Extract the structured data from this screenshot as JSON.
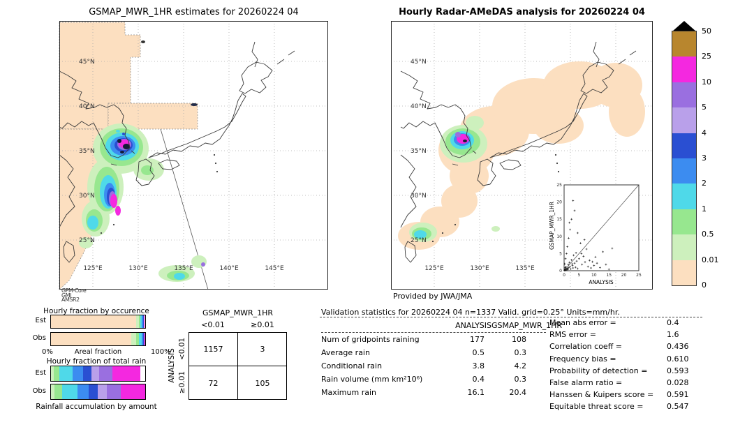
{
  "maps": {
    "left": {
      "title": "GSMAP_MWR_1HR estimates for 20260224 04",
      "lat_labels": [
        "45°N",
        "40°N",
        "35°N",
        "30°N",
        "25°N"
      ],
      "lon_labels": [
        "125°E",
        "130°E",
        "135°E",
        "140°E",
        "145°E"
      ],
      "annotations": [
        "GPM-Core",
        "GMI",
        "AMSR2"
      ],
      "blobs": [
        [
          88,
          183,
          40,
          36,
          "#cdf0bd"
        ],
        [
          66,
          238,
          26,
          40,
          "#cdf0bd"
        ],
        [
          52,
          283,
          20,
          26,
          "#cdf0bd"
        ],
        [
          128,
          213,
          22,
          16,
          "#cdf0bd"
        ],
        [
          168,
          362,
          26,
          12,
          "#cdf0bd"
        ],
        [
          200,
          345,
          11,
          9,
          "#cdf0bd"
        ],
        [
          38,
          318,
          10,
          8,
          "#cdf0bd"
        ],
        [
          89,
          181,
          31,
          27,
          "#97e78f"
        ],
        [
          68,
          241,
          18,
          32,
          "#97e78f"
        ],
        [
          50,
          286,
          12,
          16,
          "#97e78f"
        ],
        [
          170,
          365,
          16,
          7,
          "#97e78f"
        ],
        [
          126,
          214,
          9,
          7,
          "#97e78f"
        ],
        [
          90,
          180,
          24,
          20,
          "#4fd9e9"
        ],
        [
          70,
          245,
          12,
          24,
          "#4fd9e9"
        ],
        [
          48,
          289,
          8,
          10,
          "#4fd9e9"
        ],
        [
          172,
          366,
          8,
          5,
          "#4fd9e9"
        ],
        [
          91,
          179,
          18,
          14,
          "#3c8cf0"
        ],
        [
          72,
          249,
          8,
          17,
          "#3c8cf0"
        ],
        [
          92,
          178,
          13,
          10,
          "#2a4fd2"
        ],
        [
          74,
          252,
          6,
          13,
          "#2a4fd2"
        ],
        [
          93,
          177,
          10,
          8,
          "#9a6fe0"
        ],
        [
          76,
          255,
          5,
          11,
          "#9a6fe0"
        ],
        [
          206,
          349,
          3,
          3,
          "#9a6fe0"
        ],
        [
          93,
          176,
          8,
          6,
          "#f428e0"
        ],
        [
          78,
          258,
          5,
          10,
          "#f428e0"
        ],
        [
          84,
          272,
          4,
          7,
          "#f428e0"
        ],
        [
          96,
          180,
          5,
          4,
          "#141c38"
        ],
        [
          86,
          172,
          3,
          3,
          "#141c38"
        ],
        [
          90,
          188,
          3,
          2,
          "#141c38"
        ],
        [
          84,
          158,
          3,
          2,
          "#4fd9e9"
        ],
        [
          92,
          162,
          2,
          2,
          "#2a4fd2"
        ],
        [
          120,
          30,
          3,
          2,
          "#333333"
        ],
        [
          193,
          120,
          5,
          2,
          "#202a48"
        ]
      ]
    },
    "right": {
      "title": "Hourly Radar-AMeDAS analysis for 20260224 04",
      "lat_labels": [
        "45°N",
        "40°N",
        "35°N",
        "30°N",
        "25°N"
      ],
      "lon_labels": [
        "125°E",
        "130°E",
        "135°E"
      ],
      "credit": "Provided by JWA/JMA",
      "inset": {
        "ylabel": "GSMAP_MWR_1HR",
        "xlabel": "ANALYSIS",
        "ticks": [
          "0",
          "5",
          "10",
          "15",
          "20",
          "25"
        ]
      },
      "blobs": [
        [
          40,
          308,
          30,
          20,
          "#fcdfc0"
        ],
        [
          70,
          288,
          28,
          22,
          "#fcdfc0"
        ],
        [
          98,
          258,
          26,
          24,
          "#fcdfc0"
        ],
        [
          112,
          222,
          28,
          26,
          "#fcdfc0"
        ],
        [
          108,
          185,
          40,
          36,
          "#fcdfc0"
        ],
        [
          148,
          158,
          50,
          36,
          "#fcdfc0"
        ],
        [
          205,
          122,
          60,
          40,
          "#fcdfc0"
        ],
        [
          270,
          92,
          52,
          34,
          "#fcdfc0"
        ],
        [
          322,
          92,
          38,
          32,
          "#fcdfc0"
        ],
        [
          338,
          130,
          26,
          36,
          "#fcdfc0"
        ],
        [
          240,
          150,
          36,
          26,
          "#fcdfc0"
        ],
        [
          104,
          176,
          34,
          27,
          "#cdf0bd"
        ],
        [
          46,
          303,
          20,
          14,
          "#cdf0bd"
        ],
        [
          120,
          146,
          13,
          10,
          "#cdf0bd"
        ],
        [
          150,
          298,
          6,
          4,
          "#cdf0bd"
        ],
        [
          103,
          173,
          25,
          19,
          "#97e78f"
        ],
        [
          44,
          305,
          14,
          9,
          "#97e78f"
        ],
        [
          102,
          171,
          17,
          13,
          "#4fd9e9"
        ],
        [
          42,
          306,
          9,
          6,
          "#4fd9e9"
        ],
        [
          102,
          170,
          12,
          9,
          "#3c8cf0"
        ],
        [
          103,
          169,
          9,
          7,
          "#f428e0"
        ],
        [
          96,
          163,
          4,
          4,
          "#9a6fe0"
        ],
        [
          106,
          172,
          3,
          2,
          "#141c38"
        ]
      ]
    }
  },
  "colorbar": {
    "labels": [
      "50",
      "25",
      "10",
      "5",
      "4",
      "3",
      "2",
      "1",
      "0.5",
      "0.01",
      "0"
    ],
    "colors": [
      "#b8862e",
      "#f428e0",
      "#9a6fe0",
      "#b9a0ea",
      "#2a4fd2",
      "#3c8cf0",
      "#4fd9e9",
      "#97e78f",
      "#cdf0bd",
      "#fcdfc0"
    ],
    "overflow_color": "#000000"
  },
  "fraction_charts": {
    "occurrence": {
      "title": "Hourly fraction by occurence",
      "row_labels": [
        "Est",
        "Obs"
      ],
      "x_min": "0%",
      "x_max": "100%",
      "x_title": "Areal fraction",
      "est_segments": [
        [
          "#fcdfc0",
          90.0
        ],
        [
          "#cdf0bd",
          3.0
        ],
        [
          "#97e78f",
          2.0
        ],
        [
          "#4fd9e9",
          1.5
        ],
        [
          "#3c8cf0",
          1.0
        ],
        [
          "#2a4fd2",
          0.7
        ],
        [
          "#9a6fe0",
          0.6
        ],
        [
          "#f428e0",
          0.7
        ],
        [
          "#ffffff",
          0.5
        ]
      ],
      "obs_segments": [
        [
          "#fcdfc0",
          85.0
        ],
        [
          "#cdf0bd",
          5.0
        ],
        [
          "#97e78f",
          3.5
        ],
        [
          "#4fd9e9",
          2.5
        ],
        [
          "#3c8cf0",
          1.5
        ],
        [
          "#2a4fd2",
          1.0
        ],
        [
          "#9a6fe0",
          0.8
        ],
        [
          "#f428e0",
          0.7
        ]
      ]
    },
    "total_rain": {
      "title": "Hourly fraction of total rain",
      "row_labels": [
        "Est",
        "Obs"
      ],
      "caption": "Rainfall accumulation by amount",
      "est_segments": [
        [
          "#cdf0bd",
          3
        ],
        [
          "#97e78f",
          6
        ],
        [
          "#4fd9e9",
          14
        ],
        [
          "#3c8cf0",
          11
        ],
        [
          "#2a4fd2",
          9
        ],
        [
          "#b9a0ea",
          8
        ],
        [
          "#9a6fe0",
          14
        ],
        [
          "#f428e0",
          30
        ],
        [
          "#ffffff",
          5
        ]
      ],
      "obs_segments": [
        [
          "#cdf0bd",
          4
        ],
        [
          "#97e78f",
          8
        ],
        [
          "#4fd9e9",
          16
        ],
        [
          "#3c8cf0",
          12
        ],
        [
          "#2a4fd2",
          10
        ],
        [
          "#b9a0ea",
          9
        ],
        [
          "#9a6fe0",
          15
        ],
        [
          "#f428e0",
          26
        ]
      ]
    }
  },
  "contingency": {
    "col_title": "GSMAP_MWR_1HR",
    "row_title": "ANALYSIS",
    "col_labels": [
      "<0.01",
      "≥0.01"
    ],
    "row_labels": [
      "<0.01",
      "≥0.01"
    ],
    "values": [
      [
        "1157",
        "3"
      ],
      [
        "72",
        "105"
      ]
    ]
  },
  "stats": {
    "header": "Validation statistics for 20260224 04  n=1337 Valid. grid=0.25° Units=mm/hr.",
    "col_headers": [
      "ANALYSIS",
      "GSMAP_MWR_1HR"
    ],
    "rows": [
      {
        "label": "Num of gridpoints raining",
        "analysis": "177",
        "gsmap": "108"
      },
      {
        "label": "Average rain",
        "analysis": "0.5",
        "gsmap": "0.3"
      },
      {
        "label": "Conditional rain",
        "analysis": "3.8",
        "gsmap": "4.2"
      },
      {
        "label": "Rain volume (mm km²10⁶)",
        "analysis": "0.4",
        "gsmap": "0.3"
      },
      {
        "label": "Maximum rain",
        "analysis": "16.1",
        "gsmap": "20.4"
      }
    ],
    "metrics": [
      {
        "label": "Mean abs error =",
        "value": "0.4"
      },
      {
        "label": "RMS error =",
        "value": "1.6"
      },
      {
        "label": "Correlation coeff =",
        "value": "0.436"
      },
      {
        "label": "Frequency bias =",
        "value": "0.610"
      },
      {
        "label": "Probability of detection =",
        "value": "0.593"
      },
      {
        "label": "False alarm ratio =",
        "value": "0.028"
      },
      {
        "label": "Hanssen & Kuipers score =",
        "value": "0.591"
      },
      {
        "label": "Equitable threat score =",
        "value": "0.547"
      }
    ]
  },
  "chart_data": {
    "type": "table",
    "n_gridpoints": 1337,
    "grid_deg": 0.25,
    "units": "mm/hr",
    "colorbar_levels_mm_hr": [
      0,
      0.01,
      0.5,
      1,
      2,
      3,
      4,
      5,
      10,
      25,
      50
    ],
    "contingency_values": [
      [
        1157,
        3
      ],
      [
        72,
        105
      ]
    ],
    "stats_table": {
      "columns": [
        "ANALYSIS",
        "GSMAP_MWR_1HR"
      ],
      "num_gridpoints_raining": [
        177,
        108
      ],
      "average_rain": [
        0.5,
        0.3
      ],
      "conditional_rain": [
        3.8,
        4.2
      ],
      "rain_volume_mm_km2_1e6": [
        0.4,
        0.3
      ],
      "maximum_rain": [
        16.1,
        20.4
      ]
    },
    "scores": {
      "mean_abs_error": 0.4,
      "rms_error": 1.6,
      "correlation_coeff": 0.436,
      "frequency_bias": 0.61,
      "probability_of_detection": 0.593,
      "false_alarm_ratio": 0.028,
      "hanssen_kuipers": 0.591,
      "equitable_threat": 0.547
    },
    "scatter": {
      "type": "scatter",
      "xlabel": "ANALYSIS",
      "ylabel": "GSMAP_MWR_1HR",
      "xlim": [
        0,
        25
      ],
      "ylim": [
        0,
        25
      ],
      "points": [
        [
          0.1,
          0.1
        ],
        [
          0.2,
          0.3
        ],
        [
          0.3,
          0.1
        ],
        [
          0.4,
          0.6
        ],
        [
          0.5,
          0.2
        ],
        [
          0.6,
          1.1
        ],
        [
          0.8,
          0.4
        ],
        [
          1,
          0.7
        ],
        [
          1.2,
          0.3
        ],
        [
          1.4,
          1.8
        ],
        [
          1.6,
          0.9
        ],
        [
          1.8,
          2.4
        ],
        [
          2,
          1.2
        ],
        [
          2.2,
          0.5
        ],
        [
          2.5,
          3.1
        ],
        [
          2.8,
          1.5
        ],
        [
          3,
          0.8
        ],
        [
          3.2,
          4.5
        ],
        [
          3.5,
          2.2
        ],
        [
          3.8,
          1
        ],
        [
          4,
          5.2
        ],
        [
          4.2,
          2.8
        ],
        [
          4.5,
          0.6
        ],
        [
          5,
          3.5
        ],
        [
          5.5,
          8
        ],
        [
          6,
          1.8
        ],
        [
          6.5,
          4.2
        ],
        [
          7,
          2.5
        ],
        [
          7.5,
          6.3
        ],
        [
          8,
          1.2
        ],
        [
          8.5,
          3
        ],
        [
          9,
          0.8
        ],
        [
          10,
          1.5
        ],
        [
          10.5,
          4
        ],
        [
          11,
          2.2
        ],
        [
          12,
          0.9
        ],
        [
          13,
          5.5
        ],
        [
          14,
          1.8
        ],
        [
          15,
          0.4
        ],
        [
          16.1,
          6.5
        ],
        [
          0.2,
          2
        ],
        [
          0.5,
          3.5
        ],
        [
          0.8,
          5
        ],
        [
          1.1,
          7
        ],
        [
          1.5,
          9.5
        ],
        [
          2,
          12
        ],
        [
          2.5,
          15
        ],
        [
          3,
          20.4
        ],
        [
          3.5,
          17.5
        ],
        [
          1.8,
          14
        ],
        [
          4.5,
          11
        ],
        [
          0.3,
          0.9
        ],
        [
          0.7,
          0.2
        ],
        [
          1.3,
          0.5
        ],
        [
          2.7,
          2
        ],
        [
          5.8,
          5
        ],
        [
          6.8,
          9
        ],
        [
          9.5,
          2.6
        ]
      ]
    }
  }
}
